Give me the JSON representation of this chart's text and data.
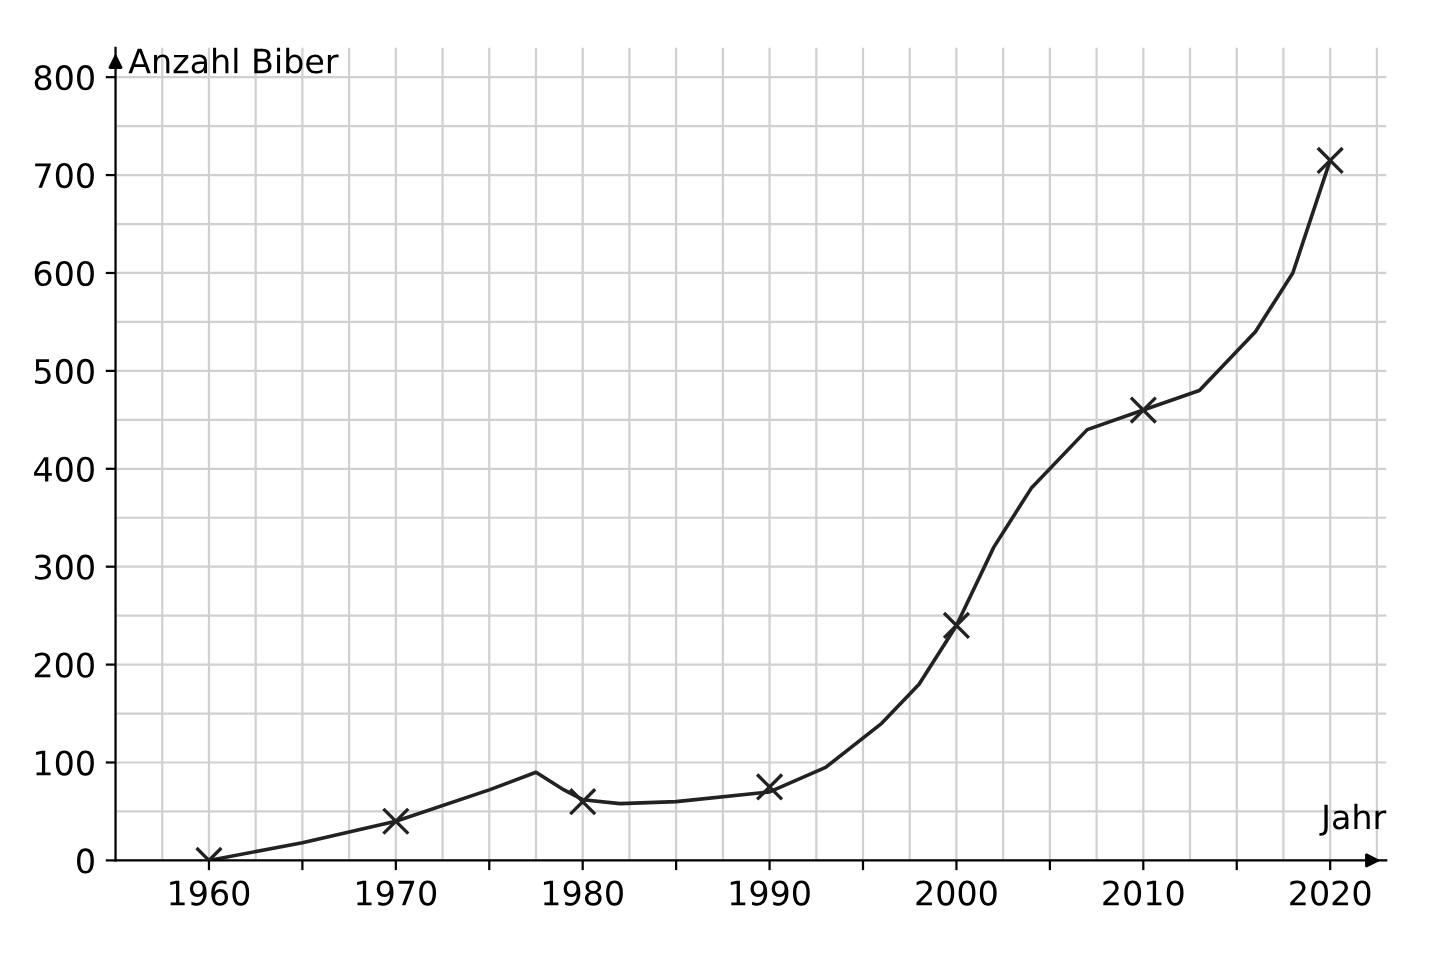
{
  "chart_data": {
    "type": "line",
    "xlabel": "Jahr",
    "ylabel": "Anzahl Biber",
    "xlim": [
      1955,
      2023
    ],
    "ylim": [
      0,
      830
    ],
    "xticks": [
      1960,
      {
        "value": 1965,
        "label": null
      },
      1970,
      {
        "value": 1975,
        "label": null
      },
      1980,
      {
        "value": 1985,
        "label": null
      },
      1990,
      {
        "value": 1995,
        "label": null
      },
      2000,
      {
        "value": 2005,
        "label": null
      },
      2010,
      {
        "value": 2015,
        "label": null
      },
      2020
    ],
    "yticks": [
      0,
      100,
      200,
      300,
      400,
      500,
      600,
      700,
      800
    ],
    "grid": true,
    "series": [
      {
        "color": "#222222",
        "marker": "none",
        "line_style": "solid",
        "x": [
          1960,
          1965,
          1970,
          1975,
          1977.5,
          1979,
          1980,
          1982,
          1985,
          1990,
          1993,
          1996,
          1998,
          2000,
          2002,
          2004,
          2007,
          2010,
          2013,
          2016,
          2018,
          2020
        ],
        "values": [
          0,
          18,
          40,
          72,
          90,
          72,
          62,
          58,
          60,
          70,
          95,
          140,
          180,
          240,
          320,
          380,
          440,
          460,
          480,
          540,
          600,
          715
        ]
      },
      {
        "type": "scatter",
        "color": "#222222",
        "marker": "cross",
        "x": [
          1960,
          1970,
          1980,
          1990,
          2000,
          2010,
          2020
        ],
        "values": [
          0,
          40,
          60,
          75,
          240,
          460,
          715
        ]
      }
    ]
  }
}
